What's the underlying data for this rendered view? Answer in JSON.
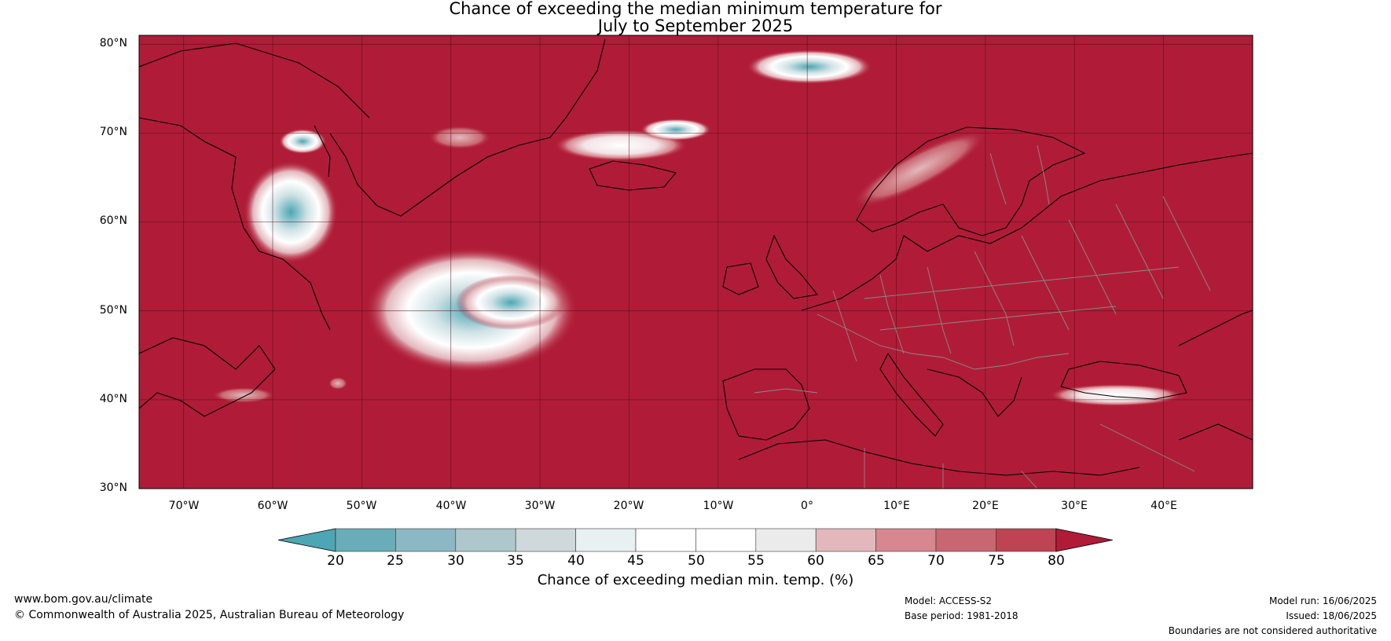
{
  "title": {
    "line1": "Chance of exceeding the median minimum temperature for",
    "line2": "July to September 2025"
  },
  "map": {
    "lon_range": [
      -75,
      50
    ],
    "lat_range": [
      30,
      81
    ],
    "lat_labels": [
      "80°N",
      "70°N",
      "60°N",
      "50°N",
      "40°N",
      "30°N"
    ],
    "lon_labels": [
      "70°W",
      "60°W",
      "50°W",
      "40°W",
      "30°W",
      "20°W",
      "10°W",
      "0°",
      "10°E",
      "20°E",
      "30°E",
      "40°E"
    ],
    "dominant_color": "#b01c37",
    "coast_color": "#000000",
    "border_color": "#888888"
  },
  "colorbar": {
    "colors": [
      "#4da6b4",
      "#6aacb8",
      "#8bb8c3",
      "#adc7cc",
      "#cfd9dc",
      "#e9f0f1",
      "#ffffff",
      "#ffffff",
      "#ebebeb",
      "#e3b8bd",
      "#d6878f",
      "#c86771",
      "#bf4453",
      "#b01c37"
    ],
    "ticks": [
      "20",
      "25",
      "30",
      "35",
      "40",
      "45",
      "50",
      "55",
      "60",
      "65",
      "70",
      "75",
      "80"
    ],
    "label": "Chance of exceeding median min. temp. (%)"
  },
  "footer": {
    "website": "www.bom.gov.au/climate",
    "copyright": "© Commonwealth of Australia 2025, Australian Bureau of Meteorology",
    "model": "Model: ACCESS-S2",
    "base_period": "Base period: 1981-2018",
    "model_run": "Model run: 16/06/2025",
    "issued": "Issued: 18/06/2025",
    "disclaimer": "Boundaries are not considered authoritative"
  }
}
